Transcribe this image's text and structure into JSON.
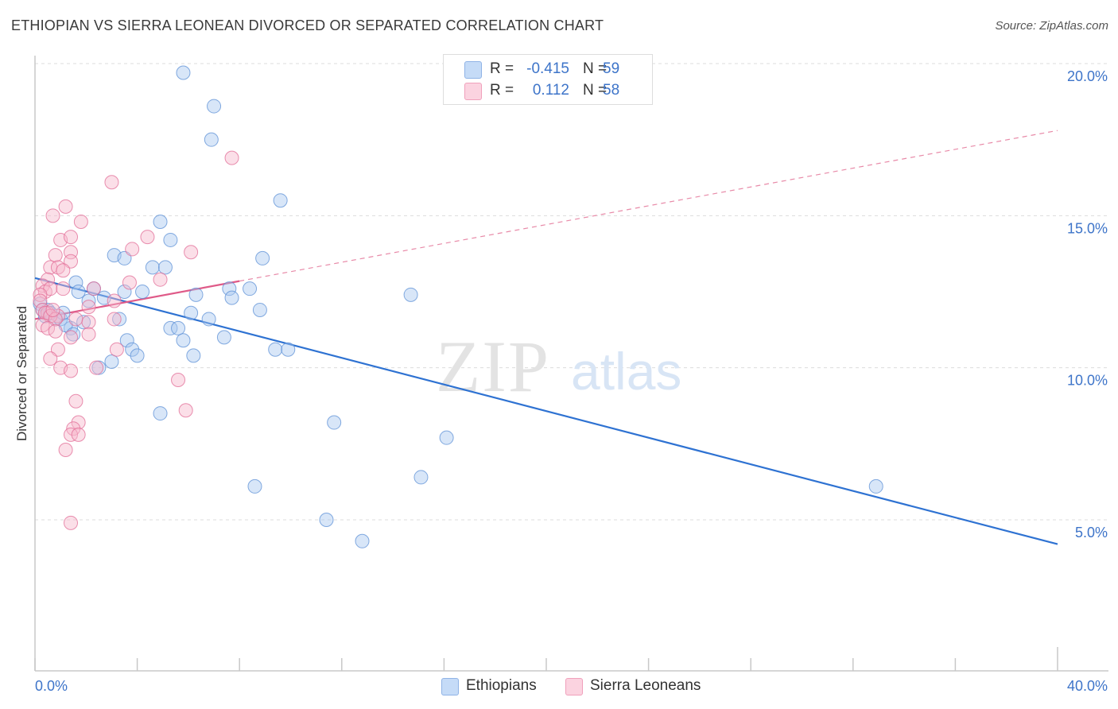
{
  "header": {
    "title": "ETHIOPIAN VS SIERRA LEONEAN DIVORCED OR SEPARATED CORRELATION CHART",
    "source": "Source: ZipAtlas.com"
  },
  "watermark": {
    "zip": "ZIP",
    "atlas": "atlas"
  },
  "legend": {
    "rows": [
      {
        "r_label": "R =",
        "r_value": "-0.415",
        "n_label": "N =",
        "n_value": "59",
        "color": "#a9c8f0"
      },
      {
        "r_label": "R =",
        "r_value": "0.112",
        "n_label": "N =",
        "n_value": "58",
        "color": "#f7b8cc"
      }
    ]
  },
  "bottom_legend": {
    "items": [
      {
        "label": "Ethiopians",
        "color": "#a9c8f0"
      },
      {
        "label": "Sierra Leoneans",
        "color": "#f7b8cc"
      }
    ]
  },
  "chart_data": {
    "type": "scatter",
    "title": "ETHIOPIAN VS SIERRA LEONEAN DIVORCED OR SEPARATED CORRELATION CHART",
    "ylabel": "Divorced or Separated",
    "xlabel": "",
    "xlim": [
      0,
      40
    ],
    "ylim": [
      0,
      21
    ],
    "x_tick_labels": [
      "0.0%",
      "40.0%"
    ],
    "y_ticks": [
      5,
      10,
      15,
      20
    ],
    "y_tick_labels": [
      "5.0%",
      "10.0%",
      "15.0%",
      "20.0%"
    ],
    "grid": "horizontal dashed",
    "series": [
      {
        "name": "Ethiopians",
        "color": "#5b8fd6",
        "fill": "#a9c8f0",
        "trend": {
          "x": [
            0,
            40
          ],
          "y": [
            12.95,
            4.2
          ],
          "dashed_extension": false
        },
        "points": [
          [
            5.8,
            19.7
          ],
          [
            7.0,
            18.6
          ],
          [
            6.9,
            17.5
          ],
          [
            9.6,
            15.5
          ],
          [
            4.9,
            14.8
          ],
          [
            5.3,
            14.2
          ],
          [
            3.1,
            13.7
          ],
          [
            3.5,
            13.6
          ],
          [
            4.6,
            13.3
          ],
          [
            5.1,
            13.3
          ],
          [
            8.9,
            13.6
          ],
          [
            1.6,
            12.8
          ],
          [
            2.3,
            12.6
          ],
          [
            1.7,
            12.5
          ],
          [
            3.5,
            12.5
          ],
          [
            4.2,
            12.5
          ],
          [
            6.3,
            12.4
          ],
          [
            7.6,
            12.6
          ],
          [
            8.4,
            12.6
          ],
          [
            14.7,
            12.4
          ],
          [
            0.2,
            12.1
          ],
          [
            0.5,
            11.9
          ],
          [
            0.4,
            11.7
          ],
          [
            0.8,
            11.6
          ],
          [
            1.4,
            11.3
          ],
          [
            1.9,
            11.5
          ],
          [
            2.1,
            12.2
          ],
          [
            3.3,
            11.6
          ],
          [
            6.1,
            11.8
          ],
          [
            6.8,
            11.6
          ],
          [
            7.7,
            12.3
          ],
          [
            8.8,
            11.9
          ],
          [
            5.3,
            11.3
          ],
          [
            5.6,
            11.3
          ],
          [
            5.8,
            10.9
          ],
          [
            7.4,
            11.0
          ],
          [
            1.0,
            11.6
          ],
          [
            1.2,
            11.4
          ],
          [
            1.5,
            11.1
          ],
          [
            3.6,
            10.9
          ],
          [
            3.8,
            10.6
          ],
          [
            4.0,
            10.4
          ],
          [
            9.4,
            10.6
          ],
          [
            9.9,
            10.6
          ],
          [
            6.2,
            10.4
          ],
          [
            3.0,
            10.2
          ],
          [
            2.5,
            10.0
          ],
          [
            4.9,
            8.5
          ],
          [
            11.7,
            8.2
          ],
          [
            16.1,
            7.7
          ],
          [
            15.1,
            6.4
          ],
          [
            8.6,
            6.1
          ],
          [
            32.9,
            6.1
          ],
          [
            11.4,
            5.0
          ],
          [
            12.8,
            4.3
          ],
          [
            0.3,
            11.9
          ],
          [
            0.6,
            11.8
          ],
          [
            2.7,
            12.3
          ],
          [
            1.1,
            11.8
          ]
        ]
      },
      {
        "name": "Sierra Leoneans",
        "color": "#e16b95",
        "fill": "#f7b8cc",
        "trend": {
          "x": [
            0,
            8.0
          ],
          "y": [
            11.6,
            12.85
          ],
          "dashed_extension_to": [
            40,
            17.8
          ]
        },
        "points": [
          [
            7.7,
            16.9
          ],
          [
            3.0,
            16.1
          ],
          [
            1.2,
            15.3
          ],
          [
            0.7,
            15.0
          ],
          [
            1.8,
            14.8
          ],
          [
            1.0,
            14.2
          ],
          [
            1.4,
            14.3
          ],
          [
            4.4,
            14.3
          ],
          [
            3.8,
            13.9
          ],
          [
            6.1,
            13.8
          ],
          [
            1.4,
            13.8
          ],
          [
            0.8,
            13.7
          ],
          [
            1.4,
            13.5
          ],
          [
            0.6,
            13.3
          ],
          [
            0.9,
            13.3
          ],
          [
            1.1,
            13.2
          ],
          [
            0.5,
            12.9
          ],
          [
            3.7,
            12.8
          ],
          [
            4.9,
            12.9
          ],
          [
            0.3,
            12.7
          ],
          [
            0.4,
            12.5
          ],
          [
            0.6,
            12.6
          ],
          [
            0.2,
            12.4
          ],
          [
            2.3,
            12.6
          ],
          [
            1.1,
            12.6
          ],
          [
            0.2,
            12.2
          ],
          [
            3.1,
            12.2
          ],
          [
            2.1,
            12.0
          ],
          [
            0.3,
            11.9
          ],
          [
            0.5,
            11.8
          ],
          [
            0.4,
            11.8
          ],
          [
            0.9,
            11.7
          ],
          [
            0.6,
            11.7
          ],
          [
            0.8,
            11.6
          ],
          [
            1.6,
            11.6
          ],
          [
            2.1,
            11.5
          ],
          [
            3.1,
            11.6
          ],
          [
            0.3,
            11.4
          ],
          [
            0.5,
            11.3
          ],
          [
            0.8,
            11.2
          ],
          [
            2.1,
            11.1
          ],
          [
            1.4,
            11.0
          ],
          [
            3.2,
            10.6
          ],
          [
            0.9,
            10.6
          ],
          [
            0.6,
            10.3
          ],
          [
            1.0,
            10.0
          ],
          [
            1.4,
            9.9
          ],
          [
            2.4,
            10.0
          ],
          [
            5.6,
            9.6
          ],
          [
            1.6,
            8.9
          ],
          [
            5.9,
            8.6
          ],
          [
            1.7,
            8.2
          ],
          [
            1.5,
            8.0
          ],
          [
            1.4,
            7.8
          ],
          [
            1.7,
            7.8
          ],
          [
            1.2,
            7.3
          ],
          [
            1.4,
            4.9
          ],
          [
            0.7,
            11.9
          ]
        ]
      }
    ]
  }
}
